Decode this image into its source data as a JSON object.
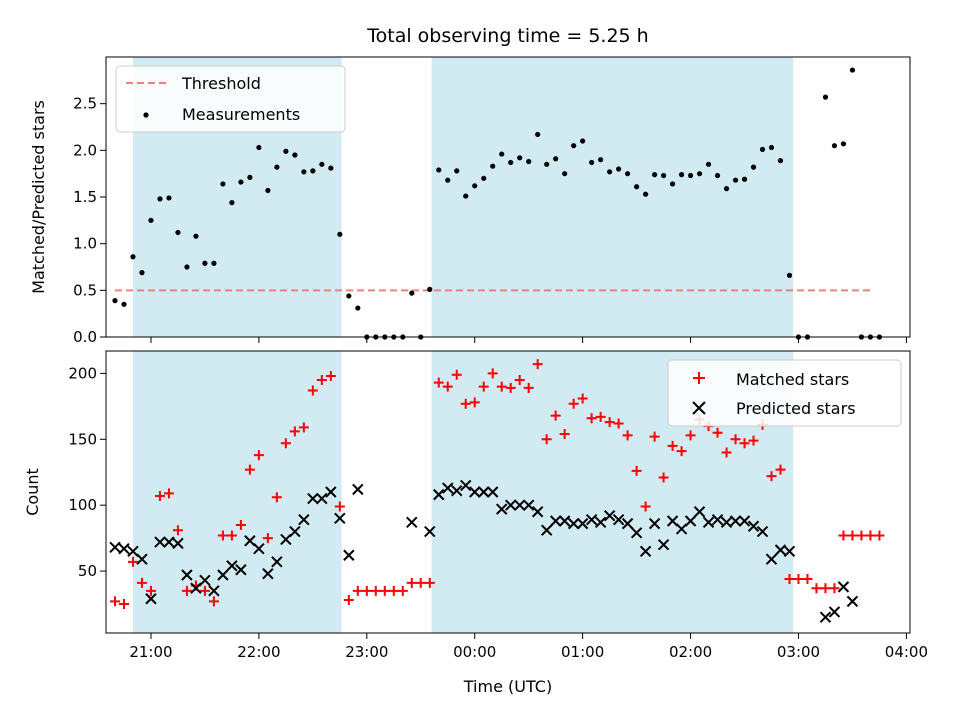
{
  "chart_data": [
    {
      "type": "scatter",
      "title": "Total observing time = 5.25 h",
      "xlabel": "",
      "ylabel": "Matched/Predicted stars",
      "xlim": [
        "20:35",
        "04:02"
      ],
      "ylim": [
        0,
        3.0
      ],
      "yticks": [
        "0.0",
        "0.5",
        "1.0",
        "1.5",
        "2.0",
        "2.5"
      ],
      "legend": {
        "position": "top-left",
        "entries": [
          "Threshold",
          "Measurements"
        ]
      },
      "colors": {
        "threshold": "#f08080",
        "points": "#000000",
        "shade": "#add8e6"
      },
      "threshold": {
        "name": "Threshold",
        "value": 0.5,
        "x_range": [
          "20:40",
          "03:40"
        ]
      },
      "shaded_intervals": [
        [
          "20:50",
          "22:46"
        ],
        [
          "23:36",
          "02:57"
        ]
      ],
      "series": [
        {
          "name": "Measurements",
          "points": [
            [
              "20:40",
              0.39
            ],
            [
              "20:45",
              0.35
            ],
            [
              "20:50",
              0.86
            ],
            [
              "20:55",
              0.69
            ],
            [
              "21:00",
              1.25
            ],
            [
              "21:05",
              1.48
            ],
            [
              "21:10",
              1.49
            ],
            [
              "21:15",
              1.12
            ],
            [
              "21:20",
              0.75
            ],
            [
              "21:25",
              1.08
            ],
            [
              "21:30",
              0.79
            ],
            [
              "21:35",
              0.79
            ],
            [
              "21:40",
              1.64
            ],
            [
              "21:45",
              1.44
            ],
            [
              "21:50",
              1.66
            ],
            [
              "21:55",
              1.71
            ],
            [
              "22:00",
              2.03
            ],
            [
              "22:05",
              1.57
            ],
            [
              "22:10",
              1.82
            ],
            [
              "22:15",
              1.99
            ],
            [
              "22:20",
              1.95
            ],
            [
              "22:25",
              1.77
            ],
            [
              "22:30",
              1.78
            ],
            [
              "22:35",
              1.85
            ],
            [
              "22:40",
              1.81
            ],
            [
              "22:45",
              1.1
            ],
            [
              "22:50",
              0.44
            ],
            [
              "22:55",
              0.31
            ],
            [
              "23:00",
              0.0
            ],
            [
              "23:05",
              0.0
            ],
            [
              "23:10",
              0.0
            ],
            [
              "23:15",
              0.0
            ],
            [
              "23:20",
              0.0
            ],
            [
              "23:25",
              0.47
            ],
            [
              "23:30",
              0.0
            ],
            [
              "23:35",
              0.51
            ],
            [
              "23:40",
              1.79
            ],
            [
              "23:45",
              1.68
            ],
            [
              "23:50",
              1.78
            ],
            [
              "23:55",
              1.51
            ],
            [
              "00:00",
              1.62
            ],
            [
              "00:05",
              1.7
            ],
            [
              "00:10",
              1.83
            ],
            [
              "00:15",
              1.96
            ],
            [
              "00:20",
              1.87
            ],
            [
              "00:25",
              1.92
            ],
            [
              "00:30",
              1.88
            ],
            [
              "00:35",
              2.17
            ],
            [
              "00:40",
              1.85
            ],
            [
              "00:45",
              1.91
            ],
            [
              "00:50",
              1.75
            ],
            [
              "00:55",
              2.05
            ],
            [
              "01:00",
              2.1
            ],
            [
              "01:05",
              1.87
            ],
            [
              "01:10",
              1.9
            ],
            [
              "01:15",
              1.77
            ],
            [
              "01:20",
              1.8
            ],
            [
              "01:25",
              1.75
            ],
            [
              "01:30",
              1.61
            ],
            [
              "01:35",
              1.53
            ],
            [
              "01:40",
              1.74
            ],
            [
              "01:45",
              1.73
            ],
            [
              "01:50",
              1.64
            ],
            [
              "01:55",
              1.74
            ],
            [
              "02:00",
              1.73
            ],
            [
              "02:05",
              1.75
            ],
            [
              "02:10",
              1.85
            ],
            [
              "02:15",
              1.73
            ],
            [
              "02:20",
              1.59
            ],
            [
              "02:25",
              1.68
            ],
            [
              "02:30",
              1.69
            ],
            [
              "02:35",
              1.82
            ],
            [
              "02:40",
              2.01
            ],
            [
              "02:45",
              2.03
            ],
            [
              "02:50",
              1.89
            ],
            [
              "02:55",
              0.66
            ],
            [
              "03:00",
              0.0
            ],
            [
              "03:05",
              0.0
            ],
            [
              "03:15",
              2.57
            ],
            [
              "03:20",
              2.05
            ],
            [
              "03:25",
              2.07
            ],
            [
              "03:30",
              2.86
            ],
            [
              "03:35",
              0.0
            ],
            [
              "03:40",
              0.0
            ],
            [
              "03:45",
              0.0
            ]
          ]
        }
      ]
    },
    {
      "type": "scatter",
      "title": "",
      "xlabel": "Time (UTC)",
      "ylabel": "Count",
      "xlim": [
        "20:35",
        "04:02"
      ],
      "ylim": [
        3,
        217
      ],
      "xticks": [
        "21:00",
        "22:00",
        "23:00",
        "00:00",
        "01:00",
        "02:00",
        "03:00",
        "04:00"
      ],
      "yticks": [
        "50",
        "100",
        "150",
        "200"
      ],
      "legend": {
        "position": "top-right",
        "entries": [
          "Matched stars",
          "Predicted stars"
        ]
      },
      "colors": {
        "matched": "#ff0000",
        "predicted": "#000000",
        "shade": "#add8e6"
      },
      "shaded_intervals": [
        [
          "20:50",
          "22:46"
        ],
        [
          "23:36",
          "02:57"
        ]
      ],
      "series": [
        {
          "name": "Matched stars",
          "marker": "plus",
          "points": [
            [
              "20:40",
              27
            ],
            [
              "20:45",
              25
            ],
            [
              "20:50",
              57
            ],
            [
              "20:55",
              41
            ],
            [
              "21:00",
              35
            ],
            [
              "21:05",
              107
            ],
            [
              "21:10",
              109
            ],
            [
              "21:15",
              81
            ],
            [
              "21:20",
              35
            ],
            [
              "21:25",
              39
            ],
            [
              "21:30",
              35
            ],
            [
              "21:35",
              27
            ],
            [
              "21:40",
              77
            ],
            [
              "21:45",
              77
            ],
            [
              "21:50",
              85
            ],
            [
              "21:55",
              127
            ],
            [
              "22:00",
              138
            ],
            [
              "22:05",
              75
            ],
            [
              "22:10",
              106
            ],
            [
              "22:15",
              147
            ],
            [
              "22:20",
              156
            ],
            [
              "22:25",
              159
            ],
            [
              "22:30",
              187
            ],
            [
              "22:35",
              195
            ],
            [
              "22:40",
              198
            ],
            [
              "22:45",
              99
            ],
            [
              "22:50",
              28
            ],
            [
              "22:55",
              35
            ],
            [
              "23:00",
              35
            ],
            [
              "23:05",
              35
            ],
            [
              "23:10",
              35
            ],
            [
              "23:15",
              35
            ],
            [
              "23:20",
              35
            ],
            [
              "23:25",
              41
            ],
            [
              "23:30",
              41
            ],
            [
              "23:35",
              41
            ],
            [
              "23:40",
              193
            ],
            [
              "23:45",
              190
            ],
            [
              "23:50",
              199
            ],
            [
              "23:55",
              177
            ],
            [
              "00:00",
              178
            ],
            [
              "00:05",
              190
            ],
            [
              "00:10",
              200
            ],
            [
              "00:15",
              190
            ],
            [
              "00:20",
              189
            ],
            [
              "00:25",
              195
            ],
            [
              "00:30",
              189
            ],
            [
              "00:35",
              207
            ],
            [
              "00:40",
              150
            ],
            [
              "00:45",
              168
            ],
            [
              "00:50",
              154
            ],
            [
              "00:55",
              177
            ],
            [
              "01:00",
              181
            ],
            [
              "01:05",
              166
            ],
            [
              "01:10",
              167
            ],
            [
              "01:15",
              163
            ],
            [
              "01:20",
              162
            ],
            [
              "01:25",
              153
            ],
            [
              "01:30",
              126
            ],
            [
              "01:35",
              99
            ],
            [
              "01:40",
              152
            ],
            [
              "01:45",
              121
            ],
            [
              "01:50",
              145
            ],
            [
              "01:55",
              141
            ],
            [
              "02:00",
              153
            ],
            [
              "02:05",
              165
            ],
            [
              "02:10",
              160
            ],
            [
              "02:15",
              155
            ],
            [
              "02:20",
              140
            ],
            [
              "02:25",
              150
            ],
            [
              "02:30",
              147
            ],
            [
              "02:35",
              149
            ],
            [
              "02:40",
              161
            ],
            [
              "02:45",
              122
            ],
            [
              "02:50",
              127
            ],
            [
              "02:55",
              44
            ],
            [
              "03:00",
              44
            ],
            [
              "03:05",
              44
            ],
            [
              "03:10",
              37
            ],
            [
              "03:15",
              37
            ],
            [
              "03:20",
              37
            ],
            [
              "03:25",
              77
            ],
            [
              "03:30",
              77
            ],
            [
              "03:35",
              77
            ],
            [
              "03:40",
              77
            ],
            [
              "03:45",
              77
            ]
          ]
        },
        {
          "name": "Predicted stars",
          "marker": "cross",
          "points": [
            [
              "20:40",
              68
            ],
            [
              "20:45",
              67
            ],
            [
              "20:50",
              65
            ],
            [
              "20:55",
              59
            ],
            [
              "21:00",
              29
            ],
            [
              "21:05",
              72
            ],
            [
              "21:10",
              72
            ],
            [
              "21:15",
              71
            ],
            [
              "21:20",
              47
            ],
            [
              "21:25",
              37
            ],
            [
              "21:30",
              43
            ],
            [
              "21:35",
              35
            ],
            [
              "21:40",
              47
            ],
            [
              "21:45",
              54
            ],
            [
              "21:50",
              51
            ],
            [
              "21:55",
              73
            ],
            [
              "22:00",
              67
            ],
            [
              "22:05",
              48
            ],
            [
              "22:10",
              57
            ],
            [
              "22:15",
              74
            ],
            [
              "22:20",
              80
            ],
            [
              "22:25",
              89
            ],
            [
              "22:30",
              105
            ],
            [
              "22:35",
              105
            ],
            [
              "22:40",
              110
            ],
            [
              "22:45",
              90
            ],
            [
              "22:50",
              62
            ],
            [
              "22:55",
              112
            ],
            [
              "23:25",
              87
            ],
            [
              "23:35",
              80
            ],
            [
              "23:40",
              108
            ],
            [
              "23:45",
              113
            ],
            [
              "23:50",
              111
            ],
            [
              "23:55",
              115
            ],
            [
              "00:00",
              110
            ],
            [
              "00:05",
              110
            ],
            [
              "00:10",
              110
            ],
            [
              "00:15",
              97
            ],
            [
              "00:20",
              100
            ],
            [
              "00:25",
              100
            ],
            [
              "00:30",
              100
            ],
            [
              "00:35",
              95
            ],
            [
              "00:40",
              81
            ],
            [
              "00:45",
              88
            ],
            [
              "00:50",
              88
            ],
            [
              "00:55",
              86
            ],
            [
              "01:00",
              86
            ],
            [
              "01:05",
              89
            ],
            [
              "01:10",
              87
            ],
            [
              "01:15",
              92
            ],
            [
              "01:20",
              89
            ],
            [
              "01:25",
              86
            ],
            [
              "01:30",
              79
            ],
            [
              "01:35",
              65
            ],
            [
              "01:40",
              86
            ],
            [
              "01:45",
              70
            ],
            [
              "01:50",
              88
            ],
            [
              "01:55",
              82
            ],
            [
              "02:00",
              88
            ],
            [
              "02:05",
              95
            ],
            [
              "02:10",
              87
            ],
            [
              "02:15",
              89
            ],
            [
              "02:20",
              87
            ],
            [
              "02:25",
              88
            ],
            [
              "02:30",
              88
            ],
            [
              "02:35",
              84
            ],
            [
              "02:40",
              80
            ],
            [
              "02:45",
              59
            ],
            [
              "02:50",
              66
            ],
            [
              "02:55",
              65
            ],
            [
              "03:15",
              15
            ],
            [
              "03:20",
              19
            ],
            [
              "03:25",
              38
            ],
            [
              "03:30",
              27
            ]
          ]
        }
      ]
    }
  ]
}
